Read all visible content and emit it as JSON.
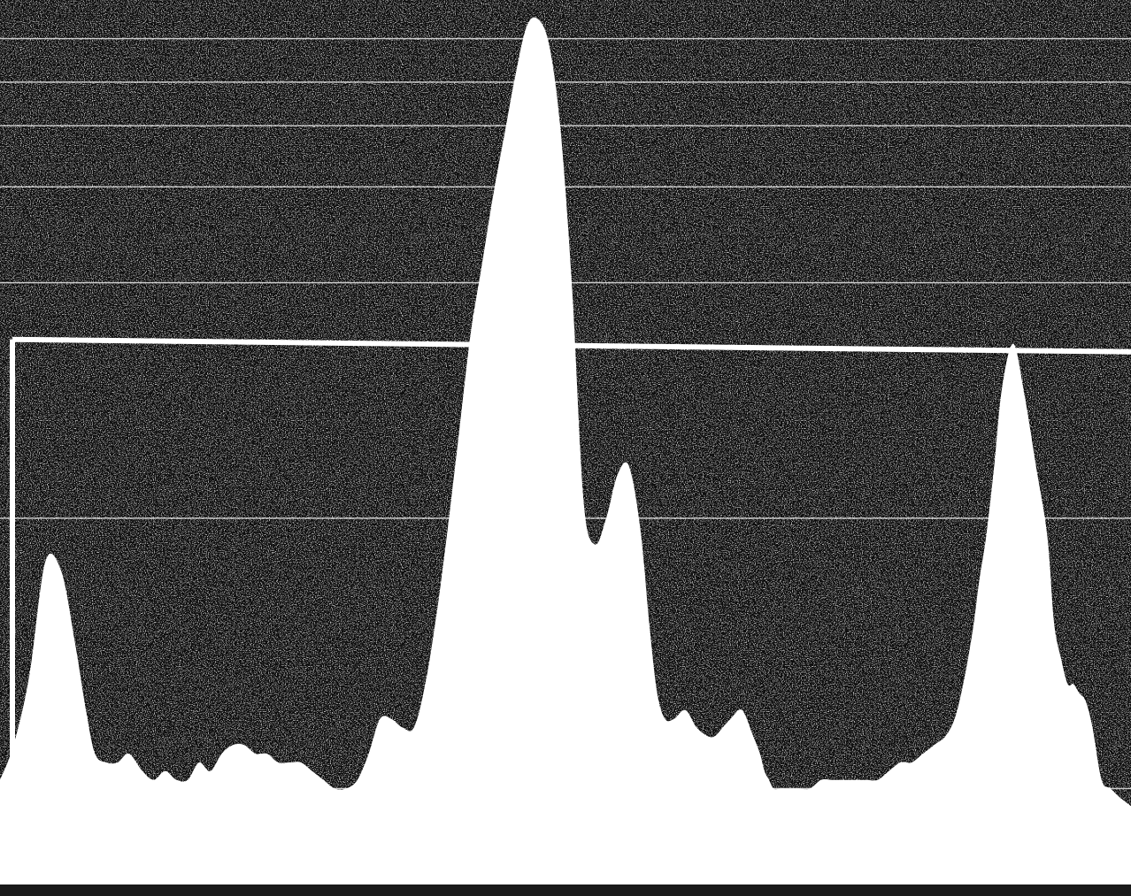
{
  "chart_data": {
    "type": "area",
    "title": "",
    "xlabel": "",
    "ylabel": "",
    "grid": true,
    "legend": "none",
    "colors": {
      "background": "#0c0c0c",
      "fill": "#ffffff",
      "gridline": "#e6e6e6",
      "threshold": "#ffffff"
    },
    "xlim": [
      0,
      100
    ],
    "ylim": [
      0,
      100
    ],
    "grid_y": [
      11,
      42,
      69,
      80,
      87,
      92,
      97
    ],
    "threshold": 62.5,
    "series": [
      {
        "x": [
          0,
          1.2,
          2.6,
          4.0,
          5.4,
          6.6,
          7.6,
          8.4,
          9.4,
          10.4,
          11.4,
          12.6,
          13.6,
          14.6,
          15.6,
          16.6,
          17.6,
          18.6,
          19.6,
          20.6,
          21.6,
          22.6,
          23.6,
          24.6,
          25.6,
          26.6,
          27.6,
          28.6,
          29.6,
          30.6,
          31.6,
          32.6,
          33.6,
          34.6,
          35.6,
          36.6,
          37.6,
          38.6,
          39.6,
          40.6,
          41.6,
          42.6,
          43.6,
          44.6,
          45.6,
          46.6,
          47.6,
          48.6,
          49.6,
          50.6,
          51.6,
          52.6,
          53.6,
          54.6,
          55.6,
          56.6,
          57.4,
          58.1,
          58.8,
          59.6,
          60.6,
          61.6,
          62.6,
          63.2,
          63.9,
          64.6,
          65.6,
          66.6,
          67.2,
          67.6,
          68.0,
          68.4,
          69.0,
          69.6,
          70.6,
          71.6,
          72.6,
          73.6,
          74.6,
          75.6,
          76.6,
          77.6,
          78.6,
          79.6,
          80.6,
          81.6,
          82.6,
          83.6,
          84.4,
          85.0,
          85.6,
          86.1,
          86.6,
          87.2,
          87.9,
          88.6,
          89.6,
          90.6,
          91.6,
          92.6,
          93.2,
          93.8,
          94.4,
          94.9,
          95.4,
          96.0,
          96.6,
          97.4,
          98.2,
          99.0,
          100
        ],
        "y": [
          12,
          16,
          24,
          37,
          36,
          28,
          20,
          15,
          14,
          14,
          15,
          13,
          12,
          13,
          12,
          12,
          14,
          13,
          15,
          16,
          16,
          15,
          15,
          14,
          14,
          14,
          13,
          12,
          11,
          11,
          12,
          15,
          19,
          19,
          18,
          18,
          23,
          31,
          41,
          52,
          63,
          71,
          79,
          86,
          93,
          98.5,
          99.2,
          96,
          86,
          68,
          44,
          39,
          42,
          47,
          48,
          41,
          30,
          22,
          19,
          19,
          20,
          18,
          17,
          17,
          18,
          19,
          20,
          17,
          15,
          13,
          12,
          11,
          11,
          11,
          11,
          11,
          12,
          12,
          12,
          12,
          12,
          12,
          13,
          14,
          14,
          15,
          16,
          17,
          19,
          22,
          26,
          30,
          35,
          40,
          48,
          57,
          62,
          56,
          48,
          40,
          30,
          26,
          23,
          23,
          22,
          21,
          18,
          12,
          11,
          10,
          9
        ]
      }
    ]
  }
}
